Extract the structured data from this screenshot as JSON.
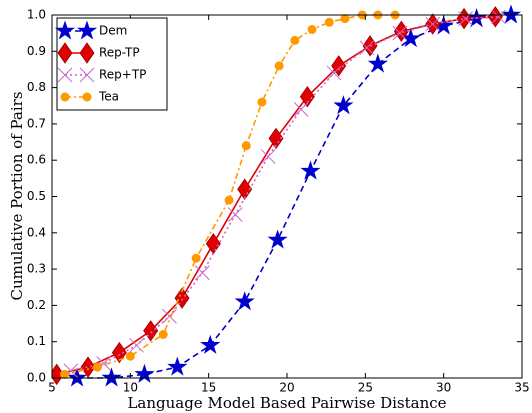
{
  "chart_data": {
    "type": "line",
    "xlabel": "Language Model Based Pairwise Distance",
    "ylabel": "Cumulative Portion of Pairs",
    "xlim": [
      5,
      35
    ],
    "xticks": [
      5,
      10,
      15,
      20,
      25,
      30,
      35
    ],
    "ylim": [
      0,
      1
    ],
    "yticks": [
      {
        "value": 0,
        "label": "0.0"
      },
      {
        "value": 0.1,
        "label": "0.1"
      },
      {
        "value": 0.2,
        "label": "0.2"
      },
      {
        "value": 0.3,
        "label": "0.3"
      },
      {
        "value": 0.4,
        "label": "0.4"
      },
      {
        "value": 0.5,
        "label": "0.5"
      },
      {
        "value": 0.6,
        "label": "0.6"
      },
      {
        "value": 0.7,
        "label": "0.7"
      },
      {
        "value": 0.8,
        "label": "0.8"
      },
      {
        "value": 0.9,
        "label": "0.9"
      },
      {
        "value": 1,
        "label": "1.0"
      }
    ],
    "legend": "upper left",
    "series": [
      {
        "name": "Dem",
        "color": "#0000cc",
        "marker": "star",
        "linestyle": "dashed",
        "x": [
          6.6,
          8.8,
          10.9,
          13.0,
          15.1,
          17.3,
          19.4,
          21.5,
          23.6,
          25.8,
          27.9,
          30.0,
          32.1,
          34.3
        ],
        "values": [
          0,
          0,
          0.01,
          0.03,
          0.09,
          0.21,
          0.38,
          0.57,
          0.75,
          0.865,
          0.935,
          0.97,
          0.99,
          1.0
        ]
      },
      {
        "name": "Rep-TP",
        "color": "#e00000",
        "marker": "diamond",
        "linestyle": "solid",
        "x": [
          5.3,
          7.3,
          9.3,
          11.3,
          13.3,
          15.3,
          17.3,
          19.3,
          21.3,
          23.3,
          25.3,
          27.3,
          29.3,
          31.3,
          33.3
        ],
        "values": [
          0.01,
          0.03,
          0.07,
          0.13,
          0.22,
          0.37,
          0.52,
          0.66,
          0.775,
          0.86,
          0.915,
          0.955,
          0.975,
          0.99,
          0.995
        ]
      },
      {
        "name": "Rep+TP",
        "color": "#cc66cc",
        "marker": "x",
        "linestyle": "dotted",
        "x": [
          6.2,
          8.3,
          10.4,
          12.5,
          14.6,
          16.7,
          18.8,
          20.9,
          23.0,
          25.1,
          27.2,
          29.3,
          31.4,
          33.5
        ],
        "values": [
          0.02,
          0.04,
          0.09,
          0.17,
          0.29,
          0.45,
          0.61,
          0.74,
          0.84,
          0.91,
          0.95,
          0.975,
          0.99,
          0.995
        ]
      },
      {
        "name": "Tea",
        "color": "#ff9900",
        "marker": "circle",
        "linestyle": "dashdot",
        "x": [
          5.8,
          7.9,
          10.0,
          12.1,
          14.2,
          16.3,
          17.4,
          18.4,
          19.5,
          20.5,
          21.6,
          22.7,
          23.7,
          24.8,
          25.8,
          26.9
        ],
        "values": [
          0.01,
          0.03,
          0.06,
          0.12,
          0.33,
          0.49,
          0.64,
          0.76,
          0.86,
          0.93,
          0.96,
          0.98,
          0.99,
          1.0,
          1.0,
          1.0
        ]
      }
    ]
  }
}
